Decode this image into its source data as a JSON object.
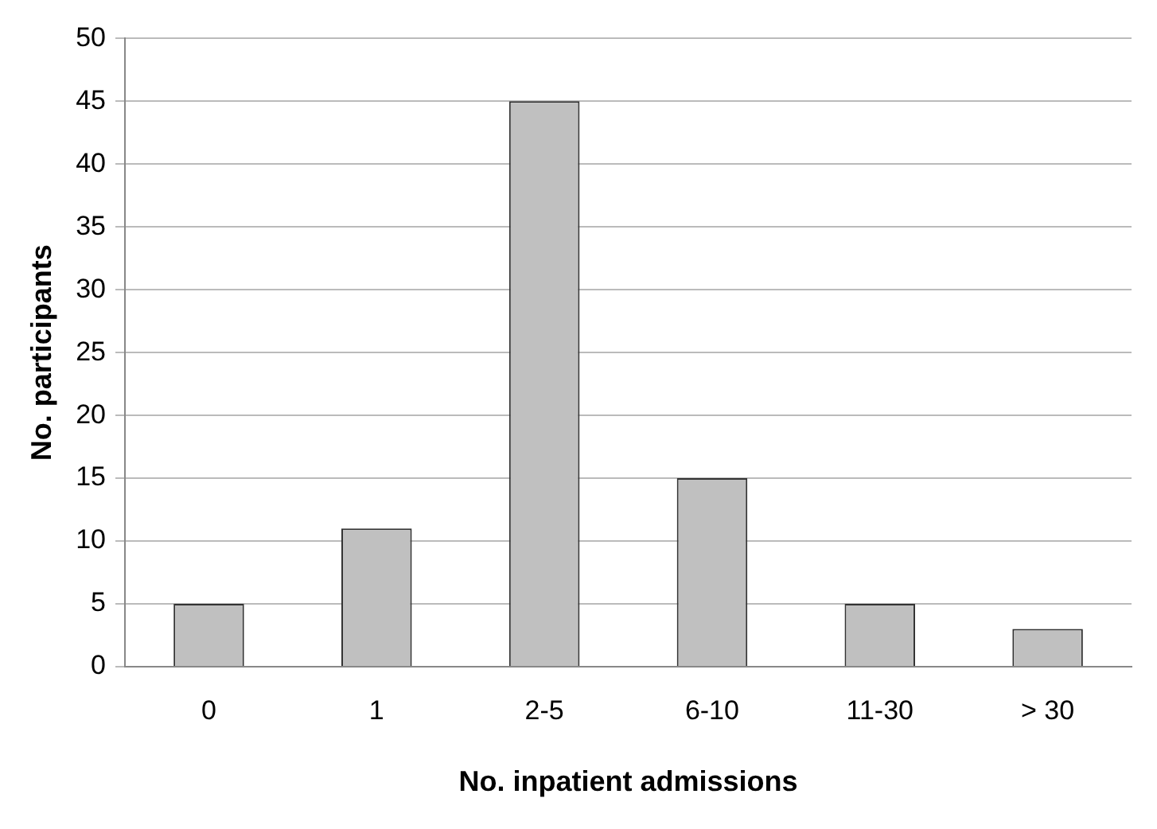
{
  "chart_data": {
    "type": "bar",
    "xlabel": "No. inpatient admissions",
    "ylabel": "No. participants",
    "categories": [
      "0",
      "1",
      "2-5",
      "6-10",
      "11-30",
      "> 30"
    ],
    "values": [
      5,
      11,
      45,
      15,
      5,
      3
    ],
    "color": "#c0c0c0",
    "ylim": [
      0,
      50
    ],
    "yticks": [
      0,
      5,
      10,
      15,
      20,
      25,
      30,
      35,
      40,
      45,
      50
    ],
    "grid": "y",
    "legend": false
  }
}
